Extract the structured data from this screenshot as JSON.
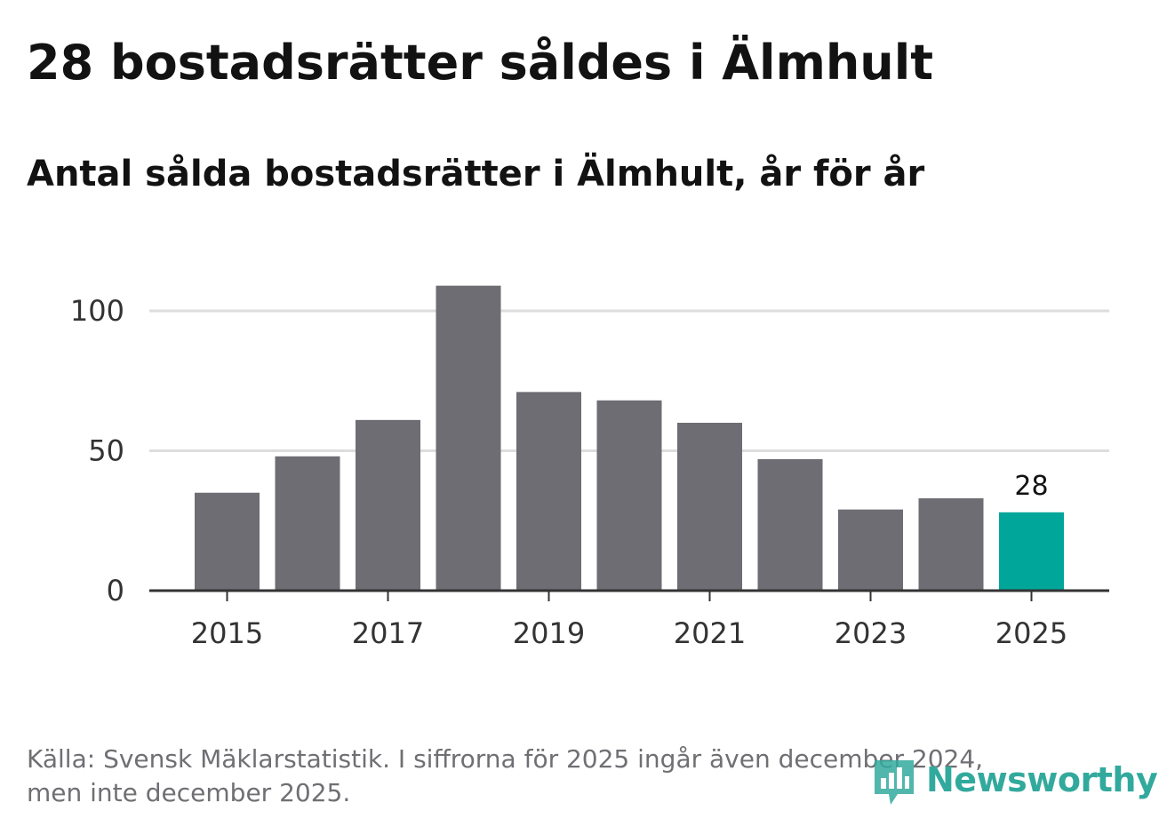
{
  "header": {
    "title": "28 bostadsrätter såldes i Älmhult",
    "subtitle": "Antal sålda bostadsrätter i Älmhult, år för år"
  },
  "chart_data": {
    "type": "bar",
    "categories": [
      "2015",
      "2016",
      "2017",
      "2018",
      "2019",
      "2020",
      "2021",
      "2022",
      "2023",
      "2024",
      "2025"
    ],
    "values": [
      35,
      48,
      61,
      109,
      71,
      68,
      60,
      47,
      29,
      33,
      28
    ],
    "x_tick_labels": [
      "2015",
      "2017",
      "2019",
      "2021",
      "2023",
      "2025"
    ],
    "y_ticks": [
      0,
      50,
      100
    ],
    "ylim": [
      0,
      110
    ],
    "highlight_category": "2025",
    "highlight_label": "28",
    "grid": true,
    "colors": {
      "bar": "#6e6d73",
      "highlight": "#00a69a",
      "grid": "#dddddd",
      "axis": "#333333"
    }
  },
  "footer": {
    "source_line1": "Källa: Svensk Mäklarstatistik. I siffrorna för 2025 ingår även december 2024,",
    "source_line2": "men inte december 2025.",
    "brand_name": "Newsworthy",
    "brand_icon": "newsworthy-logo-icon",
    "brand_color": "#32a99d"
  }
}
